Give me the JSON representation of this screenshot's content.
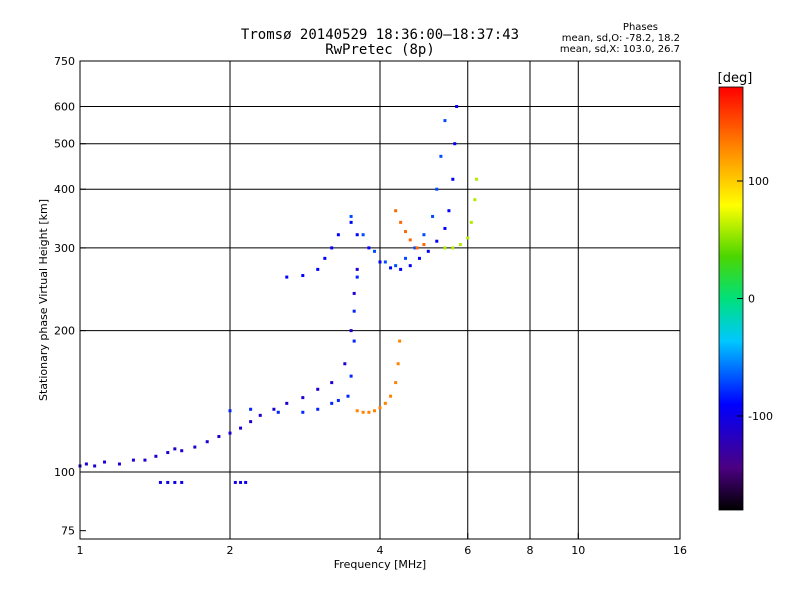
{
  "chart_data": {
    "type": "scatter",
    "title": "Tromsø 20140529 18:36:00–18:37:43",
    "subtitle": "RwPretec (8p)",
    "xlabel": "Frequency [MHz]",
    "ylabel": "Stationary phase Virtual Height [km]",
    "x_scale": "log",
    "y_scale": "log",
    "xlim": [
      1,
      16
    ],
    "ylim": [
      72,
      750
    ],
    "x_ticks": [
      1,
      2,
      4,
      6,
      8,
      10,
      16
    ],
    "x_tick_labels": [
      "1",
      "2",
      "4",
      "6",
      "8",
      "10",
      "16"
    ],
    "y_ticks": [
      75,
      100,
      200,
      300,
      400,
      500,
      600,
      750
    ],
    "y_tick_labels": [
      "75",
      "100",
      "200",
      "300",
      "400",
      "500",
      "600",
      "750"
    ],
    "x_grid_lines": [
      2,
      4,
      6,
      8,
      10
    ],
    "y_grid_lines": [
      100,
      200,
      300,
      400,
      500,
      600
    ],
    "grid": true,
    "stats": {
      "heading": "Phases",
      "o_line": "mean, sd,O: -78.2, 18.2",
      "x_line": "mean, sd,X: 103.0, 26.7"
    },
    "colorbar": {
      "label": "[deg]",
      "range": [
        -180,
        180
      ],
      "ticks": [
        100,
        0,
        -100
      ],
      "tick_labels": [
        "100",
        "0",
        "-100"
      ],
      "colormap": "rainbow"
    },
    "series": [
      {
        "phase_deg": -110,
        "points": [
          [
            1.0,
            103
          ],
          [
            1.03,
            104
          ],
          [
            1.07,
            103
          ],
          [
            1.12,
            105
          ],
          [
            1.2,
            104
          ],
          [
            1.28,
            106
          ],
          [
            1.35,
            106
          ],
          [
            1.42,
            108
          ],
          [
            1.5,
            110
          ],
          [
            1.55,
            112
          ],
          [
            1.6,
            111
          ],
          [
            1.7,
            113
          ],
          [
            1.8,
            116
          ],
          [
            1.9,
            119
          ],
          [
            2.0,
            121
          ],
          [
            2.1,
            124
          ],
          [
            2.2,
            128
          ],
          [
            2.3,
            132
          ],
          [
            2.45,
            136
          ],
          [
            2.6,
            140
          ],
          [
            2.8,
            144
          ],
          [
            3.0,
            150
          ],
          [
            3.2,
            155
          ],
          [
            3.4,
            170
          ],
          [
            3.5,
            200
          ],
          [
            3.55,
            240
          ],
          [
            3.6,
            270
          ]
        ]
      },
      {
        "phase_deg": -80,
        "points": [
          [
            2.0,
            135
          ],
          [
            2.2,
            136
          ],
          [
            2.5,
            134
          ],
          [
            2.8,
            134
          ],
          [
            3.0,
            136
          ],
          [
            3.2,
            140
          ],
          [
            3.3,
            142
          ],
          [
            3.45,
            145
          ],
          [
            3.5,
            160
          ],
          [
            3.55,
            190
          ],
          [
            3.55,
            220
          ],
          [
            3.6,
            260
          ]
        ]
      },
      {
        "phase_deg": -90,
        "points": [
          [
            2.6,
            260
          ],
          [
            2.8,
            262
          ],
          [
            3.0,
            270
          ],
          [
            3.1,
            285
          ],
          [
            3.2,
            300
          ],
          [
            3.3,
            320
          ],
          [
            3.5,
            340
          ],
          [
            3.6,
            320
          ],
          [
            3.8,
            300
          ],
          [
            4.0,
            280
          ],
          [
            4.2,
            272
          ],
          [
            4.4,
            270
          ],
          [
            4.6,
            275
          ],
          [
            4.8,
            285
          ],
          [
            5.0,
            295
          ],
          [
            5.2,
            310
          ],
          [
            5.4,
            330
          ],
          [
            5.5,
            360
          ],
          [
            5.6,
            420
          ],
          [
            5.65,
            500
          ],
          [
            5.7,
            600
          ]
        ]
      },
      {
        "phase_deg": -70,
        "points": [
          [
            3.5,
            350
          ],
          [
            3.7,
            320
          ],
          [
            3.9,
            295
          ],
          [
            4.1,
            280
          ],
          [
            4.3,
            275
          ],
          [
            4.5,
            285
          ],
          [
            4.7,
            300
          ],
          [
            4.9,
            320
          ],
          [
            5.1,
            350
          ],
          [
            5.2,
            400
          ],
          [
            5.3,
            470
          ],
          [
            5.4,
            560
          ]
        ]
      },
      {
        "phase_deg": 130,
        "points": [
          [
            3.6,
            135
          ],
          [
            3.7,
            134
          ],
          [
            3.8,
            134
          ],
          [
            3.9,
            135
          ],
          [
            4.0,
            137
          ],
          [
            4.1,
            140
          ],
          [
            4.2,
            145
          ],
          [
            4.3,
            155
          ],
          [
            4.35,
            170
          ],
          [
            4.38,
            190
          ]
        ]
      },
      {
        "phase_deg": 140,
        "points": [
          [
            4.3,
            360
          ],
          [
            4.4,
            340
          ],
          [
            4.5,
            325
          ],
          [
            4.6,
            312
          ],
          [
            4.75,
            300
          ],
          [
            4.9,
            305
          ]
        ]
      },
      {
        "phase_deg": 60,
        "points": [
          [
            5.4,
            300
          ],
          [
            5.6,
            300
          ],
          [
            5.8,
            305
          ],
          [
            6.0,
            315
          ],
          [
            6.1,
            340
          ],
          [
            6.2,
            380
          ],
          [
            6.25,
            420
          ]
        ]
      },
      {
        "phase_deg": -100,
        "points": [
          [
            1.45,
            95
          ],
          [
            1.5,
            95
          ],
          [
            1.55,
            95
          ],
          [
            1.6,
            95
          ],
          [
            2.05,
            95
          ],
          [
            2.1,
            95
          ],
          [
            2.15,
            95
          ]
        ]
      }
    ]
  }
}
